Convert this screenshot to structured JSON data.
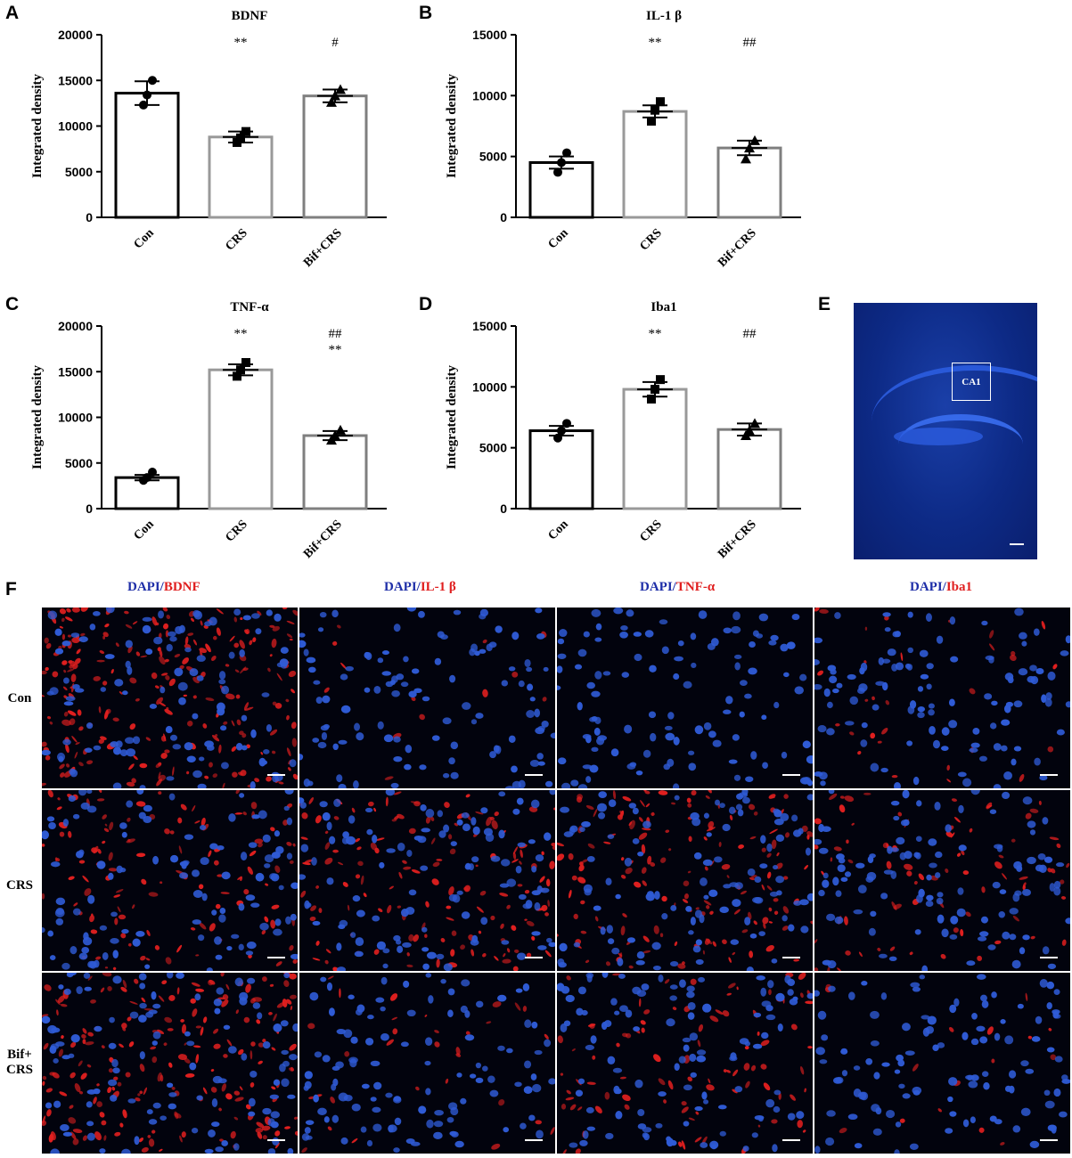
{
  "panels": {
    "A": "A",
    "B": "B",
    "C": "C",
    "D": "D",
    "E": "E",
    "F": "F"
  },
  "colors": {
    "con": "#000000",
    "crs": "#999999",
    "bif": "#7f7f7f",
    "dapi_blue": "#2f5bd6",
    "marker_red": "#e01f1f"
  },
  "chart_data": [
    {
      "panel": "A",
      "type": "bar",
      "title": "BDNF",
      "ylabel": "Integrated density",
      "ylim": [
        0,
        20000
      ],
      "yticks": [
        "0",
        "5000",
        "10000",
        "15000",
        "20000"
      ],
      "categories": [
        "Con",
        "CRS",
        "Bif+CRS"
      ],
      "values": [
        13600,
        8800,
        13300
      ],
      "sem": [
        1300,
        600,
        700
      ],
      "points": [
        [
          12300,
          13400,
          15000
        ],
        [
          8200,
          8700,
          9400
        ],
        [
          12600,
          13300,
          14000
        ]
      ],
      "markers": [
        "circle",
        "square",
        "triangle"
      ],
      "annotations": [
        [
          "",
          ""
        ],
        [
          "**",
          ""
        ],
        [
          "#",
          ""
        ]
      ]
    },
    {
      "panel": "B",
      "type": "bar",
      "title": "IL-1 β",
      "ylabel": "Integrated density",
      "ylim": [
        0,
        15000
      ],
      "yticks": [
        "0",
        "5000",
        "10000",
        "15000"
      ],
      "categories": [
        "Con",
        "CRS",
        "Bif+CRS"
      ],
      "values": [
        4500,
        8700,
        5700
      ],
      "sem": [
        500,
        500,
        600
      ],
      "points": [
        [
          3700,
          4500,
          5300
        ],
        [
          7900,
          8800,
          9500
        ],
        [
          4800,
          5700,
          6300
        ]
      ],
      "markers": [
        "circle",
        "square",
        "triangle"
      ],
      "annotations": [
        [
          "",
          ""
        ],
        [
          "**",
          ""
        ],
        [
          "##",
          ""
        ]
      ]
    },
    {
      "panel": "C",
      "type": "bar",
      "title": "TNF-α",
      "ylabel": "Integrated density",
      "ylim": [
        0,
        20000
      ],
      "yticks": [
        "0",
        "5000",
        "10000",
        "15000",
        "20000"
      ],
      "categories": [
        "Con",
        "CRS",
        "Bif+CRS"
      ],
      "values": [
        3400,
        15200,
        8000
      ],
      "sem": [
        300,
        600,
        500
      ],
      "points": [
        [
          3100,
          3400,
          4000
        ],
        [
          14500,
          15200,
          16000
        ],
        [
          7500,
          8000,
          8600
        ]
      ],
      "markers": [
        "circle",
        "square",
        "triangle"
      ],
      "annotations": [
        [
          "",
          ""
        ],
        [
          "**",
          ""
        ],
        [
          "##",
          "**"
        ]
      ]
    },
    {
      "panel": "D",
      "type": "bar",
      "title": "Iba1",
      "ylabel": "Integrated density",
      "ylim": [
        0,
        15000
      ],
      "yticks": [
        "0",
        "5000",
        "10000",
        "15000"
      ],
      "categories": [
        "Con",
        "CRS",
        "Bif+CRS"
      ],
      "values": [
        6400,
        9800,
        6500
      ],
      "sem": [
        400,
        600,
        500
      ],
      "points": [
        [
          5800,
          6400,
          7000
        ],
        [
          9000,
          9800,
          10600
        ],
        [
          6000,
          6400,
          7000
        ]
      ],
      "markers": [
        "circle",
        "square",
        "triangle"
      ],
      "annotations": [
        [
          "",
          ""
        ],
        [
          "**",
          ""
        ],
        [
          "##",
          ""
        ]
      ]
    }
  ],
  "panel_e": {
    "roi_label": "CA1"
  },
  "panel_f": {
    "columns": [
      {
        "dapi": "DAPI",
        "sep": "/",
        "marker": "BDNF"
      },
      {
        "dapi": "DAPI",
        "sep": "/",
        "marker": "IL-1 β"
      },
      {
        "dapi": "DAPI",
        "sep": "/",
        "marker": "TNF-α"
      },
      {
        "dapi": "DAPI",
        "sep": "/",
        "marker": "Iba1"
      }
    ],
    "rows": [
      {
        "line1": "Con",
        "line2": ""
      },
      {
        "line1": "CRS",
        "line2": ""
      },
      {
        "line1": "Bif+",
        "line2": "CRS"
      }
    ],
    "red_density": [
      [
        0.9,
        0.05,
        0.0,
        0.12
      ],
      [
        0.45,
        0.55,
        0.6,
        0.3
      ],
      [
        0.75,
        0.12,
        0.35,
        0.06
      ]
    ]
  }
}
